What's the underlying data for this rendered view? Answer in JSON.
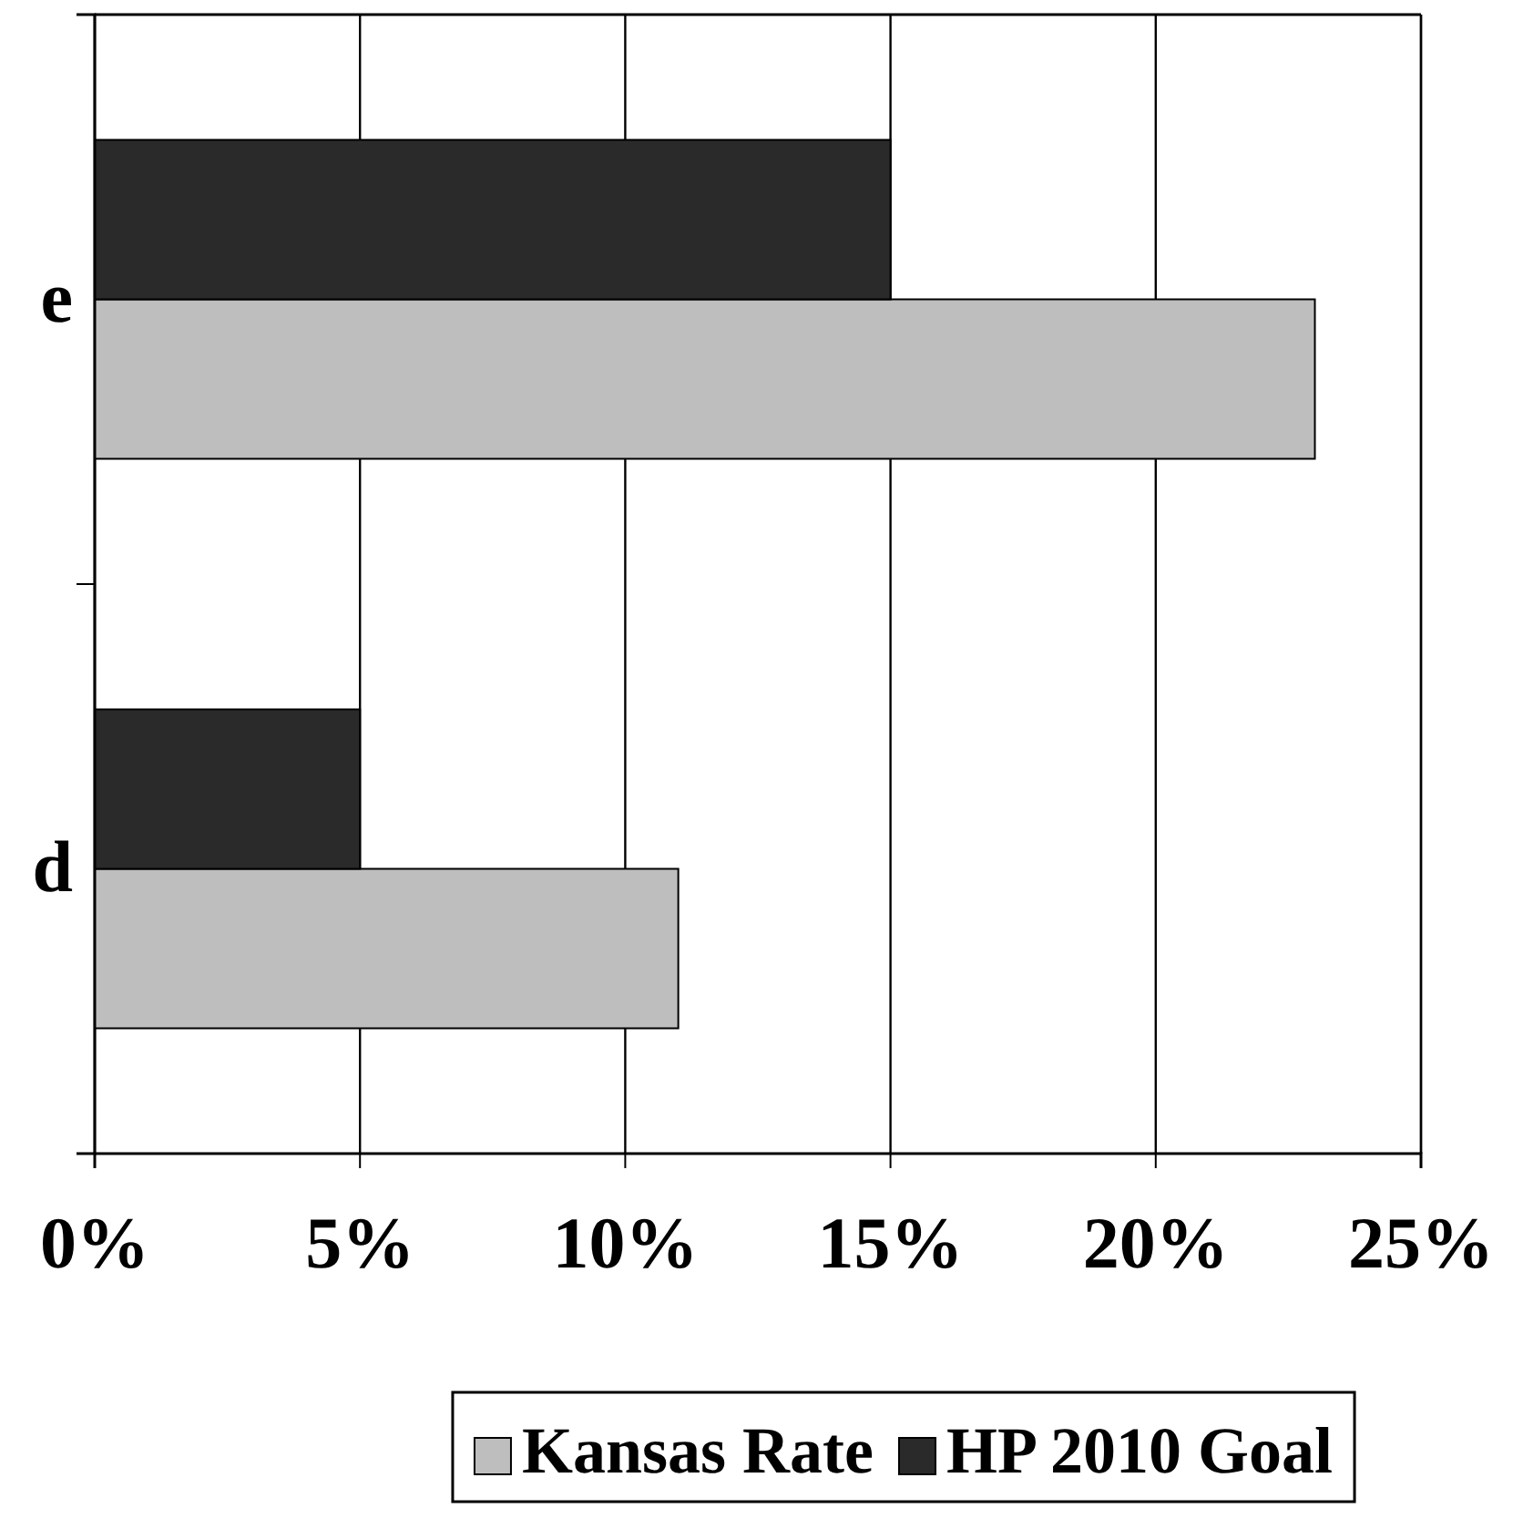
{
  "chart_data": {
    "type": "bar",
    "orientation": "horizontal",
    "categories": [
      "e",
      "d"
    ],
    "series": [
      {
        "name": "Kansas Rate",
        "color": "#bebebe",
        "values": [
          23,
          11
        ]
      },
      {
        "name": "HP 2010 Goal",
        "color": "#2a2a2a",
        "values": [
          15,
          5
        ]
      }
    ],
    "xlim": [
      0,
      25
    ],
    "xticks": [
      {
        "value": 0,
        "label": "0%"
      },
      {
        "value": 5,
        "label": "5%"
      },
      {
        "value": 10,
        "label": "10%"
      },
      {
        "value": 15,
        "label": "15%"
      },
      {
        "value": 20,
        "label": "20%"
      },
      {
        "value": 25,
        "label": "25%"
      }
    ],
    "grid": "x",
    "legend": "bottom"
  }
}
